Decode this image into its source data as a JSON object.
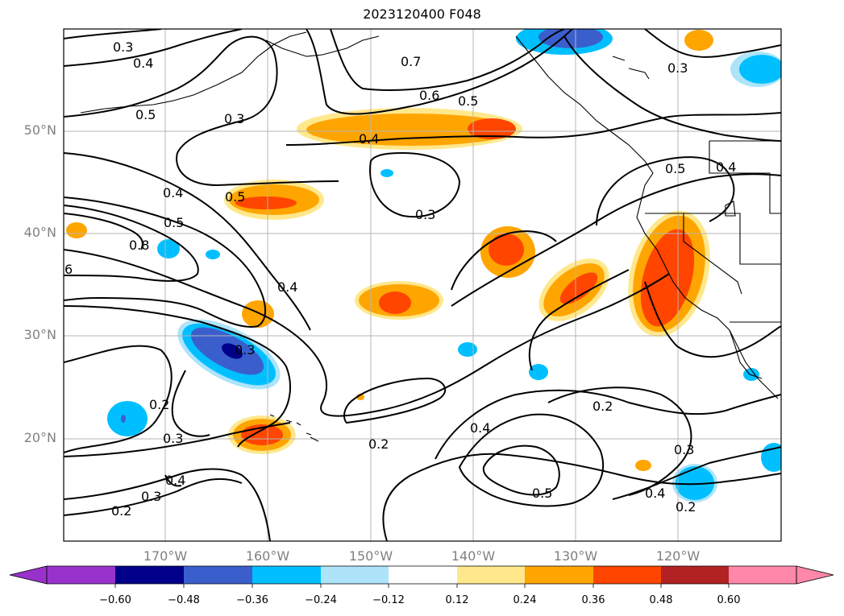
{
  "title": "2023120400 F048",
  "latitude_labels": [
    "50°N",
    "40°N",
    "30°N",
    "20°N"
  ],
  "longitude_labels": [
    "170°W",
    "160°W",
    "150°W",
    "140°W",
    "130°W",
    "120°W"
  ],
  "contour_labels": [
    "0.3",
    "0.4",
    "0.5",
    "0.3",
    "0.7",
    "0.6",
    "0.5",
    "0.4",
    "0.3",
    "0.3",
    "0.5",
    "0.4",
    "0.5",
    "0.4",
    "0.5",
    "0.8",
    "6",
    "0.4",
    "0.3",
    "0.2",
    "0.3",
    "0.4",
    "0.3",
    "0.2",
    "0.2",
    "0.4",
    "0.5",
    "0.2",
    "0.3",
    "0.4",
    "0.2"
  ],
  "colorbar": {
    "ticks": [
      "−0.60",
      "−0.48",
      "−0.36",
      "−0.24",
      "−0.12",
      "0.12",
      "0.24",
      "0.36",
      "0.48",
      "0.60"
    ],
    "colors": [
      "#9932CC",
      "#00008B",
      "#3A5FCD",
      "#00BFFF",
      "#ADE4FA",
      "#FFFFFF",
      "#FFE88C",
      "#FFA500",
      "#FF4500",
      "#B22222",
      "#FF88AA"
    ]
  }
}
